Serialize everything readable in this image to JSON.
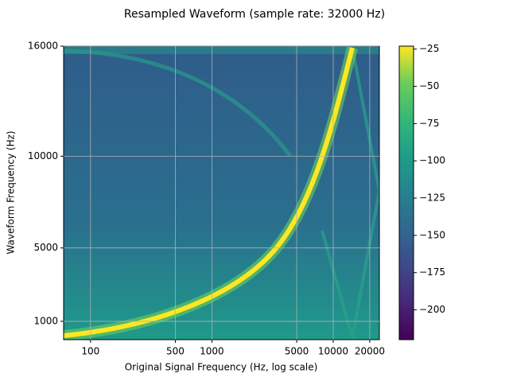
{
  "chart_data": {
    "type": "heatmap",
    "title": "Resampled Waveform (sample rate: 32000 Hz)",
    "xlabel": "Original Signal Frequency (Hz, log scale)",
    "ylabel": "Waveform Frequency (Hz)",
    "xscale": "log",
    "xlim": [
      60,
      24000
    ],
    "xticks": [
      100,
      500,
      1000,
      5000,
      10000,
      20000
    ],
    "ylim": [
      0,
      16000
    ],
    "yticks": [
      1000,
      5000,
      10000,
      16000
    ],
    "grid": true,
    "colormap": "viridis",
    "clim": [
      -220,
      -23
    ],
    "cticks": [
      {
        "value": -25,
        "label": "−25"
      },
      {
        "value": -50,
        "label": "−50"
      },
      {
        "value": -75,
        "label": "−75"
      },
      {
        "value": -100,
        "label": "−100"
      },
      {
        "value": -125,
        "label": "−125"
      },
      {
        "value": -150,
        "label": "−150"
      },
      {
        "value": -175,
        "label": "−175"
      },
      {
        "value": -200,
        "label": "−200"
      }
    ]
  }
}
